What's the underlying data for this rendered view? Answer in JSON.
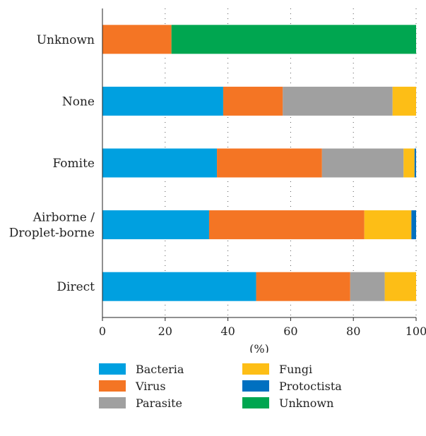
{
  "chart_data": {
    "type": "bar",
    "orientation": "horizontal",
    "stacked": true,
    "title": "",
    "xlabel": "(%)",
    "ylabel": "",
    "xlim": [
      0,
      100
    ],
    "xticks": [
      "0",
      "20",
      "40",
      "60",
      "80",
      "100"
    ],
    "grid": "vertical dotted",
    "legend_position": "bottom",
    "categories": [
      "Unknown",
      "None",
      "Fomite",
      "Airborne / Droplet-borne",
      "Direct"
    ],
    "series": [
      {
        "name": "Bacteria",
        "color": "#00A0E0",
        "values": [
          0,
          38.5,
          36.5,
          34,
          49
        ]
      },
      {
        "name": "Virus",
        "color": "#F47524",
        "values": [
          22,
          19,
          33.5,
          49.5,
          30
        ]
      },
      {
        "name": "Parasite",
        "color": "#A0A0A0",
        "values": [
          0,
          35,
          26,
          0,
          11
        ]
      },
      {
        "name": "Fungi",
        "color": "#FDBE16",
        "values": [
          0,
          7.5,
          3.5,
          15,
          10
        ]
      },
      {
        "name": "Protoctista",
        "color": "#0070C0",
        "values": [
          0,
          0,
          0.5,
          1.5,
          0
        ]
      },
      {
        "name": "Unknown",
        "color": "#00A650",
        "values": [
          78,
          0,
          0,
          0,
          0
        ]
      }
    ]
  }
}
